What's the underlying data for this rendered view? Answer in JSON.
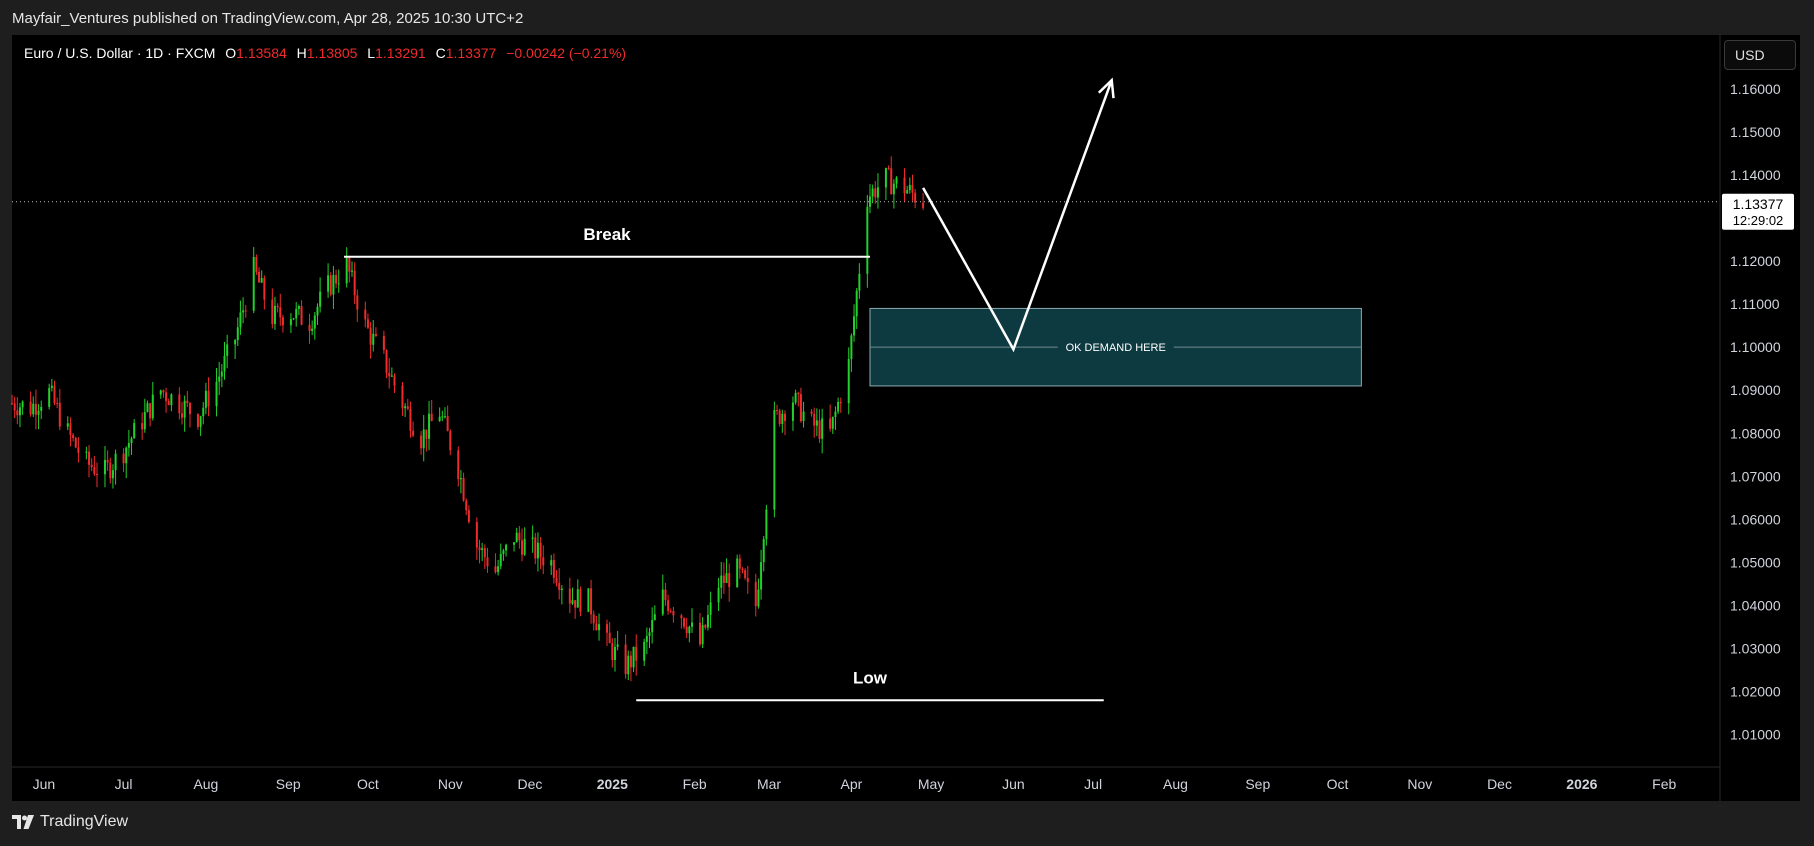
{
  "header": {
    "publisher_line": "Mayfair_Ventures published on TradingView.com, Apr 28, 2025 10:30 UTC+2"
  },
  "legend": {
    "symbol": "Euro / U.S. Dollar · 1D · FXCM",
    "open_label": "O",
    "open": "1.13584",
    "high_label": "H",
    "high": "1.13805",
    "low_label": "L",
    "low": "1.13291",
    "close_label": "C",
    "close": "1.13377",
    "change": "−0.00242 (−0.21%)"
  },
  "currency_button": "USD",
  "price_tag": {
    "price": "1.13377",
    "countdown": "12:29:02"
  },
  "footer": {
    "brand": "TradingView",
    "logo_icon": "tradingview-logo-icon"
  },
  "colors": {
    "up": "#22d12b",
    "down": "#ef2b2b",
    "zone_fill": "#0d3a40",
    "zone_border": "#8ea9ad",
    "annotation": "#ffffff"
  },
  "chart_data": {
    "type": "candlestick",
    "symbol": "EURUSD",
    "timeframe": "1D",
    "y_ticks": [
      "1.01000",
      "1.02000",
      "1.03000",
      "1.04000",
      "1.05000",
      "1.06000",
      "1.07000",
      "1.08000",
      "1.09000",
      "1.10000",
      "1.11000",
      "1.12000",
      "1.13000",
      "1.14000",
      "1.15000",
      "1.16000"
    ],
    "x_ticks": [
      {
        "label": "Jun",
        "date": "2024-06-01",
        "bold": false
      },
      {
        "label": "Jul",
        "date": "2024-07-01",
        "bold": false
      },
      {
        "label": "Aug",
        "date": "2024-08-01",
        "bold": false
      },
      {
        "label": "Sep",
        "date": "2024-09-01",
        "bold": false
      },
      {
        "label": "Oct",
        "date": "2024-10-01",
        "bold": false
      },
      {
        "label": "Nov",
        "date": "2024-11-01",
        "bold": false
      },
      {
        "label": "Dec",
        "date": "2024-12-01",
        "bold": false
      },
      {
        "label": "2025",
        "date": "2025-01-01",
        "bold": true
      },
      {
        "label": "Feb",
        "date": "2025-02-01",
        "bold": false
      },
      {
        "label": "Mar",
        "date": "2025-03-01",
        "bold": false
      },
      {
        "label": "Apr",
        "date": "2025-04-01",
        "bold": false
      },
      {
        "label": "May",
        "date": "2025-05-01",
        "bold": false
      },
      {
        "label": "Jun",
        "date": "2025-06-01",
        "bold": false
      },
      {
        "label": "Jul",
        "date": "2025-07-01",
        "bold": false
      },
      {
        "label": "Aug",
        "date": "2025-08-01",
        "bold": false
      },
      {
        "label": "Sep",
        "date": "2025-09-01",
        "bold": false
      },
      {
        "label": "Oct",
        "date": "2025-10-01",
        "bold": false
      },
      {
        "label": "Nov",
        "date": "2025-11-01",
        "bold": false
      },
      {
        "label": "Dec",
        "date": "2025-12-01",
        "bold": false
      },
      {
        "label": "2026",
        "date": "2026-01-01",
        "bold": true
      },
      {
        "label": "Feb",
        "date": "2026-02-01",
        "bold": false
      }
    ],
    "x_range": [
      "2024-05-20",
      "2026-02-22"
    ],
    "y_range": [
      1.0025,
      1.1725
    ],
    "path_closes": [
      [
        "2024-05-20",
        1.087
      ],
      [
        "2024-05-27",
        1.086
      ],
      [
        "2024-06-03",
        1.0895
      ],
      [
        "2024-06-10",
        1.08
      ],
      [
        "2024-06-17",
        1.073
      ],
      [
        "2024-06-24",
        1.071
      ],
      [
        "2024-07-01",
        1.076
      ],
      [
        "2024-07-08",
        1.083
      ],
      [
        "2024-07-15",
        1.09
      ],
      [
        "2024-07-22",
        1.087
      ],
      [
        "2024-07-29",
        1.084
      ],
      [
        "2024-08-05",
        1.092
      ],
      [
        "2024-08-12",
        1.102
      ],
      [
        "2024-08-19",
        1.118
      ],
      [
        "2024-08-26",
        1.107
      ],
      [
        "2024-09-02",
        1.108
      ],
      [
        "2024-09-09",
        1.106
      ],
      [
        "2024-09-16",
        1.114
      ],
      [
        "2024-09-23",
        1.119
      ],
      [
        "2024-09-30",
        1.105
      ],
      [
        "2024-10-07",
        1.097
      ],
      [
        "2024-10-14",
        1.087
      ],
      [
        "2024-10-21",
        1.079
      ],
      [
        "2024-10-28",
        1.085
      ],
      [
        "2024-11-04",
        1.072
      ],
      [
        "2024-11-11",
        1.054
      ],
      [
        "2024-11-18",
        1.048
      ],
      [
        "2024-11-25",
        1.056
      ],
      [
        "2024-12-02",
        1.053
      ],
      [
        "2024-12-09",
        1.05
      ],
      [
        "2024-12-16",
        1.042
      ],
      [
        "2024-12-23",
        1.041
      ],
      [
        "2024-12-30",
        1.031
      ],
      [
        "2025-01-06",
        1.026
      ],
      [
        "2025-01-13",
        1.03
      ],
      [
        "2025-01-20",
        1.042
      ],
      [
        "2025-01-27",
        1.038
      ],
      [
        "2025-02-03",
        1.031
      ],
      [
        "2025-02-10",
        1.045
      ],
      [
        "2025-02-17",
        1.048
      ],
      [
        "2025-02-24",
        1.04
      ],
      [
        "2025-03-03",
        1.083
      ],
      [
        "2025-03-10",
        1.088
      ],
      [
        "2025-03-17",
        1.082
      ],
      [
        "2025-03-24",
        1.08
      ],
      [
        "2025-03-31",
        1.096
      ],
      [
        "2025-04-07",
        1.135
      ],
      [
        "2025-04-14",
        1.139
      ],
      [
        "2025-04-21",
        1.137
      ],
      [
        "2025-04-28",
        1.1338
      ]
    ],
    "last_price": 1.13377,
    "annotations": [
      {
        "type": "horizontal-line",
        "label": "Break",
        "price": 1.121,
        "from": "2024-09-22",
        "to": "2025-04-08"
      },
      {
        "type": "horizontal-line",
        "label": "Low",
        "price": 1.018,
        "from": "2025-01-10",
        "to": "2025-07-05"
      },
      {
        "type": "rectangle",
        "label": "OK DEMAND HERE",
        "top": 1.109,
        "bottom": 1.091,
        "from": "2025-04-08",
        "to": "2025-10-10"
      },
      {
        "type": "projection",
        "points": [
          [
            "2025-04-28",
            1.137
          ],
          [
            "2025-06-01",
            1.0995
          ],
          [
            "2025-07-08",
            1.162
          ]
        ]
      }
    ]
  }
}
